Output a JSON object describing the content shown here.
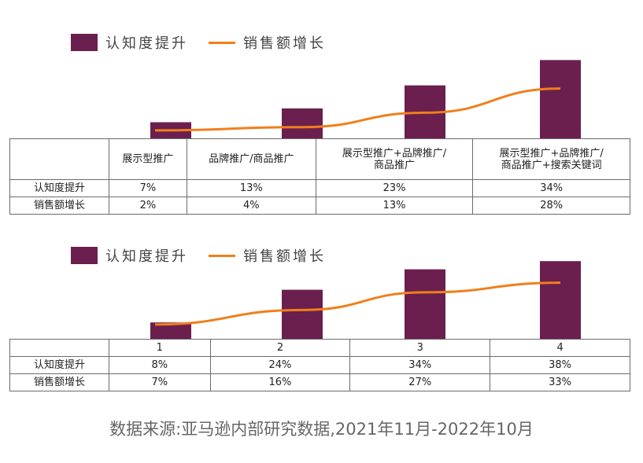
{
  "legend": {
    "bar_label": "认知度提升",
    "line_label": "销售额增长"
  },
  "colors": {
    "bar": "#6b1f4f",
    "line": "#f07f1a"
  },
  "row_labels": {
    "awareness": "认知度提升",
    "sales": "销售额增长"
  },
  "chart_data": [
    {
      "type": "bar",
      "categories": [
        "展示型推广",
        "品牌推广/商品推广",
        "展示型推广+品牌推广/商品推广",
        "展示型推广+品牌推广/商品推广+搜索关键词"
      ],
      "category_lines": [
        [
          "展示型推广"
        ],
        [
          "品牌推广/商品推广"
        ],
        [
          "展示型推广+品牌推广/",
          "商品推广"
        ],
        [
          "展示型推广+品牌推广/",
          "商品推广+搜索关键词"
        ]
      ],
      "series": [
        {
          "name": "认知度提升",
          "type": "bar",
          "values": [
            7,
            13,
            23,
            34
          ],
          "labels": [
            "7%",
            "13%",
            "23%",
            "34%"
          ]
        },
        {
          "name": "销售额增长",
          "type": "line",
          "values": [
            2,
            4,
            13,
            28
          ],
          "labels": [
            "2%",
            "4%",
            "13%",
            "28%"
          ]
        }
      ],
      "ylim": [
        0,
        40
      ],
      "grid": false,
      "legend": "top-left"
    },
    {
      "type": "bar",
      "categories": [
        "1",
        "2",
        "3",
        "4"
      ],
      "category_lines": [
        [
          "1"
        ],
        [
          "2"
        ],
        [
          "3"
        ],
        [
          "4"
        ]
      ],
      "series": [
        {
          "name": "认知度提升",
          "type": "bar",
          "values": [
            8,
            24,
            34,
            38
          ],
          "labels": [
            "8%",
            "24%",
            "34%",
            "38%"
          ]
        },
        {
          "name": "销售额增长",
          "type": "line",
          "values": [
            7,
            16,
            27,
            33
          ],
          "labels": [
            "7%",
            "16%",
            "27%",
            "33%"
          ]
        }
      ],
      "ylim": [
        0,
        40
      ],
      "grid": false,
      "legend": "top-left"
    }
  ],
  "footer": "数据来源:亚马逊内部研究数据,2021年11月-2022年10月"
}
